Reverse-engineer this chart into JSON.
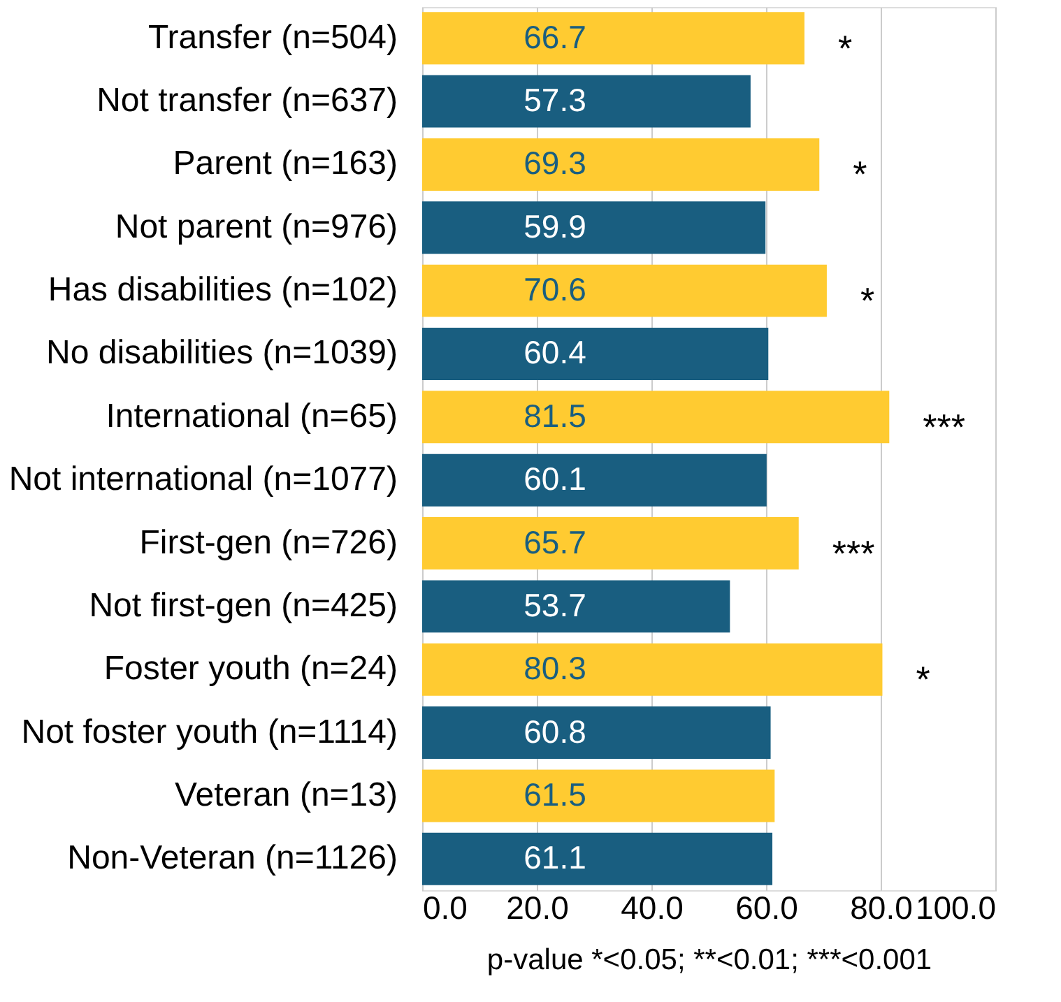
{
  "chart_data": {
    "type": "bar",
    "orientation": "horizontal",
    "categories": [
      "Transfer (n=504)",
      "Not transfer (n=637)",
      "Parent (n=163)",
      "Not parent (n=976)",
      "Has disabilities (n=102)",
      "No disabilities (n=1039)",
      "International (n=65)",
      "Not international (n=1077)",
      "First-gen (n=726)",
      "Not first-gen (n=425)",
      "Foster youth (n=24)",
      "Not foster youth (n=1114)",
      "Veteran (n=13)",
      "Non-Veteran (n=1126)"
    ],
    "values": [
      66.7,
      57.3,
      69.3,
      59.9,
      70.6,
      60.4,
      81.5,
      60.1,
      65.7,
      53.7,
      80.3,
      60.8,
      61.5,
      61.1
    ],
    "colors": [
      "#ffcb31",
      "#195e80",
      "#ffcb31",
      "#195e80",
      "#ffcb31",
      "#195e80",
      "#ffcb31",
      "#195e80",
      "#ffcb31",
      "#195e80",
      "#ffcb31",
      "#195e80",
      "#ffcb31",
      "#195e80"
    ],
    "data_labels": true,
    "xlim": [
      0,
      100
    ],
    "xticks": [
      {
        "value": 0,
        "label": "0.0"
      },
      {
        "value": 20,
        "label": "20.0"
      },
      {
        "value": 40,
        "label": "40.0"
      },
      {
        "value": 60,
        "label": "60.0"
      },
      {
        "value": 80,
        "label": "80.0"
      },
      {
        "value": 100,
        "label": "100.0"
      }
    ],
    "grid": "x",
    "xlabel": "p-value *<0.05; **<0.01; ***<0.001",
    "annotations": [
      {
        "text": "*",
        "x": 66.7,
        "y": "Transfer (n=504)"
      },
      {
        "text": "*",
        "x": 69.3,
        "y": "Parent (n=163)"
      },
      {
        "text": "*",
        "x": 70.6,
        "y": "Has disabilities (n=102)"
      },
      {
        "text": "***",
        "x": 81.5,
        "y": "International (n=65)"
      },
      {
        "text": "***",
        "x": 65.7,
        "y": "First-gen (n=726)"
      },
      {
        "text": "*",
        "x": 80.3,
        "y": "Foster youth (n=24)"
      }
    ]
  }
}
